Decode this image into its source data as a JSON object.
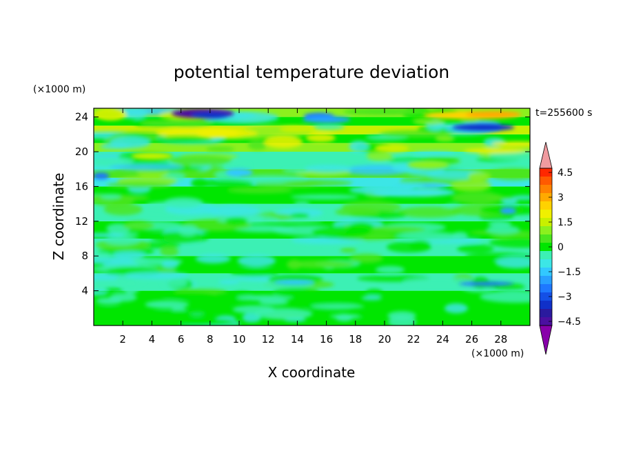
{
  "chart_data": {
    "type": "heatmap",
    "title": "potential temperature deviation",
    "xlabel": "X coordinate",
    "ylabel": "Z coordinate",
    "x_unit_label": "(×1000 m)",
    "y_unit_label": "(×1000 m)",
    "time_label": "t=255600 s",
    "xlim": [
      0,
      30
    ],
    "ylim": [
      0,
      25
    ],
    "x_ticks": [
      2,
      4,
      6,
      8,
      10,
      12,
      14,
      16,
      18,
      20,
      22,
      24,
      26,
      28
    ],
    "y_ticks": [
      4,
      8,
      12,
      16,
      20,
      24
    ],
    "colorbar": {
      "levels": [
        -5,
        -4.5,
        -4,
        -3.5,
        -3,
        -2.5,
        -2,
        -1.5,
        -1,
        -0.5,
        0,
        0.5,
        1,
        1.5,
        2,
        2.5,
        3,
        3.5,
        4,
        4.5,
        5
      ],
      "tick_labels": [
        "4.5",
        "3",
        "1.5",
        "0",
        "−1.5",
        "−3",
        "−4.5"
      ],
      "tick_values": [
        4.5,
        3,
        1.5,
        0,
        -1.5,
        -3,
        -4.5
      ],
      "colors": [
        "#8800aa",
        "#4b0fa0",
        "#2a1a9e",
        "#1030c8",
        "#1450e6",
        "#1e78ff",
        "#28a0ff",
        "#32c8ff",
        "#3ce6e6",
        "#3cf0b4",
        "#00e600",
        "#4be61e",
        "#8cf01e",
        "#c8f000",
        "#f0f000",
        "#ffd200",
        "#ffaa00",
        "#ff8200",
        "#ff5a00",
        "#ff2800",
        "#f09ba0"
      ],
      "extend": "both"
    },
    "field_description": "Horizontal banded anomaly field; near-neutral (green/cyan) below ~16 km, positive (yellow/orange) layers near 18-22 km, strong negative (blue) near z~24 km at x~6-9 and x~25-28, positive (orange) near x~24-29 at z~24."
  }
}
